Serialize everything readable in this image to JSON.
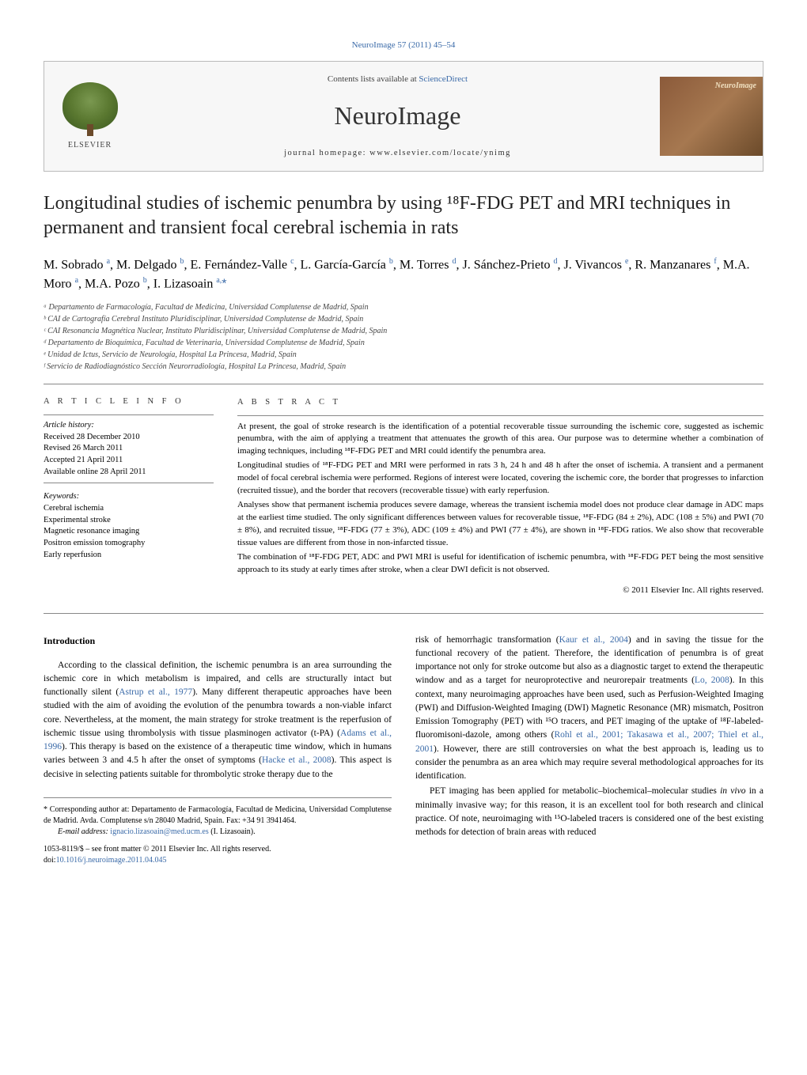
{
  "journal_ref": "NeuroImage 57 (2011) 45–54",
  "contents_text": "Contents lists available at ",
  "contents_link": "ScienceDirect",
  "journal_name": "NeuroImage",
  "homepage_line": "journal homepage: www.elsevier.com/locate/ynimg",
  "elsevier": "ELSEVIER",
  "title": "Longitudinal studies of ischemic penumbra by using ¹⁸F-FDG PET and MRI techniques in permanent and transient focal cerebral ischemia in rats",
  "authors_html": "M. Sobrado <sup class='affil-link'>a</sup>, M. Delgado <sup class='affil-link'>b</sup>, E. Fernández-Valle <sup class='affil-link'>c</sup>, L. García-García <sup class='affil-link'>b</sup>, M. Torres <sup class='affil-link'>d</sup>, J. Sánchez-Prieto <sup class='affil-link'>d</sup>, J. Vivancos <sup class='affil-link'>e</sup>, R. Manzanares <sup class='affil-link'>f</sup>, M.A. Moro <sup class='affil-link'>a</sup>, M.A. Pozo <sup class='affil-link'>b</sup>, I. Lizasoain <sup class='affil-link'>a,</sup><span class='asterisk affil-link'>*</span>",
  "affiliations": [
    "ᵃ Departamento de Farmacología, Facultad de Medicina, Universidad Complutense de Madrid, Spain",
    "ᵇ CAI de Cartografía Cerebral Instituto Pluridisciplinar, Universidad Complutense de Madrid, Spain",
    "ᶜ CAI Resonancia Magnética Nuclear, Instituto Pluridisciplinar, Universidad Complutense de Madrid, Spain",
    "ᵈ Departamento de Bioquímica, Facultad de Veterinaria, Universidad Complutense de Madrid, Spain",
    "ᵉ Unidad de Ictus, Servicio de Neurología, Hospital La Princesa, Madrid, Spain",
    "ᶠ Servicio de Radiodiagnóstico Sección Neurorradiología, Hospital La Princesa, Madrid, Spain"
  ],
  "info": {
    "heading": "A R T I C L E   I N F O",
    "history_label": "Article history:",
    "received": "Received 28 December 2010",
    "revised": "Revised 26 March 2011",
    "accepted": "Accepted 21 April 2011",
    "online": "Available online 28 April 2011",
    "kw_label": "Keywords:",
    "keywords": [
      "Cerebral ischemia",
      "Experimental stroke",
      "Magnetic resonance imaging",
      "Positron emission tomography",
      "Early reperfusion"
    ]
  },
  "abstract": {
    "heading": "A B S T R A C T",
    "p1": "At present, the goal of stroke research is the identification of a potential recoverable tissue surrounding the ischemic core, suggested as ischemic penumbra, with the aim of applying a treatment that attenuates the growth of this area. Our purpose was to determine whether a combination of imaging techniques, including ¹⁸F-FDG PET and MRI could identify the penumbra area.",
    "p2": "Longitudinal studies of ¹⁸F-FDG PET and MRI were performed in rats 3 h, 24 h and 48 h after the onset of ischemia. A transient and a permanent model of focal cerebral ischemia were performed. Regions of interest were located, covering the ischemic core, the border that progresses to infarction (recruited tissue), and the border that recovers (recoverable tissue) with early reperfusion.",
    "p3": "Analyses show that permanent ischemia produces severe damage, whereas the transient ischemia model does not produce clear damage in ADC maps at the earliest time studied. The only significant differences between values for recoverable tissue, ¹⁸F-FDG (84 ± 2%), ADC (108 ± 5%) and PWI (70 ± 8%), and recruited tissue, ¹⁸F-FDG (77 ± 3%), ADC (109 ± 4%) and PWI (77 ± 4%), are shown in ¹⁸F-FDG ratios. We also show that recoverable tissue values are different from those in non-infarcted tissue.",
    "p4": "The combination of ¹⁸F-FDG PET, ADC and PWI MRI is useful for identification of ischemic penumbra, with ¹⁸F-FDG PET being the most sensitive approach to its study at early times after stroke, when a clear DWI deficit is not observed.",
    "copyright": "© 2011 Elsevier Inc. All rights reserved."
  },
  "intro_heading": "Introduction",
  "col1_p1_pre": "According to the classical definition, the ischemic penumbra is an area surrounding the ischemic core in which metabolism is impaired, and cells are structurally intact but functionally silent (",
  "col1_cite1": "Astrup et al., 1977",
  "col1_p1_mid": "). Many different therapeutic approaches have been studied with the aim of avoiding the evolution of the penumbra towards a non-viable infarct core. Nevertheless, at the moment, the main strategy for stroke treatment is the reperfusion of ischemic tissue using thrombolysis with tissue plasminogen activator (t-PA) (",
  "col1_cite2": "Adams et al., 1996",
  "col1_p1_mid2": "). This therapy is based on the existence of a therapeutic time window, which in humans varies between 3 and 4.5 h after the onset of symptoms (",
  "col1_cite3": "Hacke et al., 2008",
  "col1_p1_post": "). This aspect is decisive in selecting patients suitable for thrombolytic stroke therapy due to the",
  "col2_p1_pre": "risk of hemorrhagic transformation (",
  "col2_cite1": "Kaur et al., 2004",
  "col2_p1_mid": ") and in saving the tissue for the functional recovery of the patient. Therefore, the identification of penumbra is of great importance not only for stroke outcome but also as a diagnostic target to extend the therapeutic window and as a target for neuroprotective and neurorepair treatments (",
  "col2_cite2": "Lo, 2008",
  "col2_p1_mid2": "). In this context, many neuroimaging approaches have been used, such as Perfusion-Weighted Imaging (PWI) and Diffusion-Weighted Imaging (DWI) Magnetic Resonance (MR) mismatch, Positron Emission Tomography (PET) with ¹⁵O tracers, and PET imaging of the uptake of ¹⁸F-labeled-fluoromisoni-dazole, among others (",
  "col2_cite3": "Rohl et al., 2001; Takasawa et al., 2007; Thiel et al., 2001",
  "col2_p1_post": "). However, there are still controversies on what the best approach is, leading us to consider the penumbra as an area which may require several methodological approaches for its identification.",
  "col2_p2_pre": "PET imaging has been applied for metabolic–biochemical–molecular studies ",
  "col2_p2_ital": "in vivo",
  "col2_p2_post": " in a minimally invasive way; for this reason, it is an excellent tool for both research and clinical practice. Of note, neuroimaging with ¹⁵O-labeled tracers is considered one of the best existing methods for detection of brain areas with reduced",
  "footnotes": {
    "corresp": "* Corresponding author at: Departamento de Farmacología, Facultad de Medicina, Universidad Complutense de Madrid. Avda. Complutense s/n 28040 Madrid, Spain. Fax: +34 91 3941464.",
    "email_label": "E-mail address: ",
    "email": "ignacio.lizasoain@med.ucm.es",
    "email_post": " (I. Lizasoain).",
    "issn": "1053-8119/$ – see front matter © 2011 Elsevier Inc. All rights reserved.",
    "doi_label": "doi:",
    "doi": "10.1016/j.neuroimage.2011.04.045"
  },
  "colors": {
    "link": "#3a6aa8",
    "rule": "#888888",
    "banner_bg": "#f7f7f7"
  }
}
